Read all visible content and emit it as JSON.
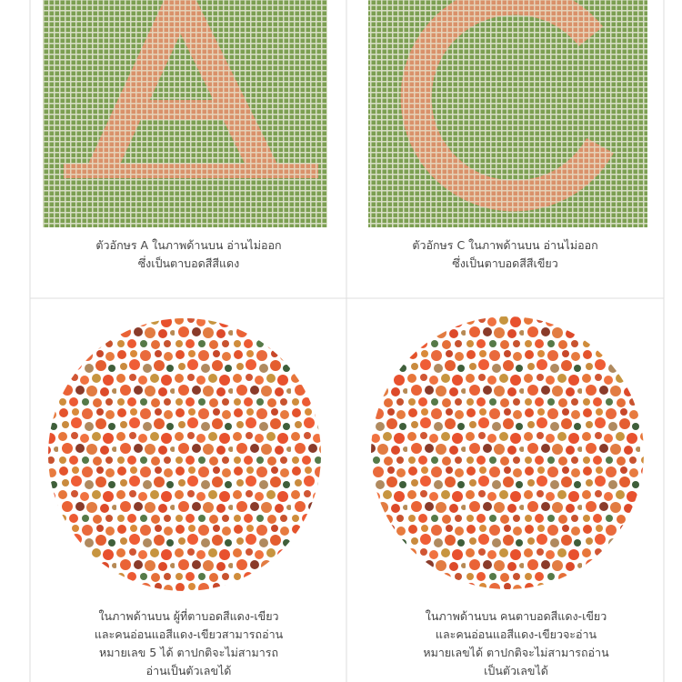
{
  "panels": [
    {
      "caption": [
        "ตัวอักษร A ในภาพด้านบน อ่านไม่ออก",
        "ซึ่งเป็นตาบอดสีสีแดง"
      ]
    },
    {
      "caption": [
        "ตัวอักษร C ในภาพด้านบน อ่านไม่ออก",
        "ซึ่งเป็นตาบอดสีสีเขียว"
      ]
    },
    {
      "caption": [
        "ในภาพด้านบน ผู้ที่ตาบอดสีแดง-เขียว",
        "และคนอ่อนแอสีแดง-เขียวสามารถอ่าน",
        "หมายเลข 5 ได้ ตาปกติจะไม่สามารถ",
        "อ่านเป็นตัวเลขได้"
      ]
    },
    {
      "caption": [
        "ในภาพด้านบน คนตาบอดสีแดง-เขียว",
        "และคนอ่อนแอสีแดง-เขียวจะอ่าน",
        "หมายเลขได้ ตาปกติจะไม่สามารถอ่าน",
        "เป็นตัวเลขได้"
      ]
    }
  ]
}
